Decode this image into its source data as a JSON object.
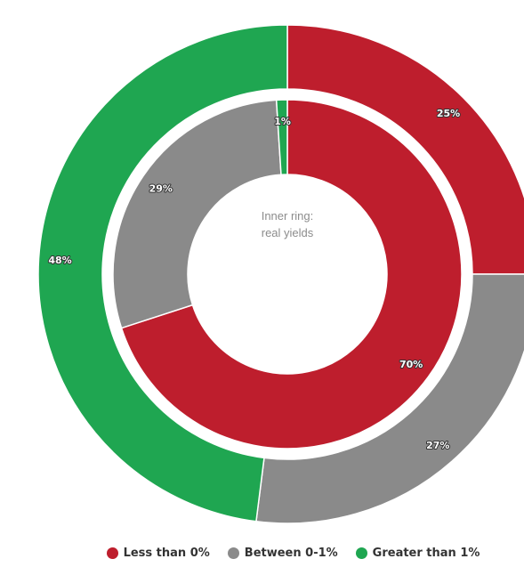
{
  "chart_data": {
    "type": "pie",
    "center_label": [
      "Inner ring:",
      "real yields"
    ],
    "categories": [
      "Less than 0%",
      "Between 0-1%",
      "Greater than 1%"
    ],
    "colors": [
      "#be1e2d",
      "#8a8a8a",
      "#1fa651"
    ],
    "rings": [
      {
        "ring": "outer",
        "values": [
          25,
          27,
          48
        ],
        "labels": [
          "25%",
          "27%",
          "48%"
        ]
      },
      {
        "ring": "inner",
        "values": [
          70,
          29,
          1
        ],
        "labels": [
          "70%",
          "29%",
          "1%"
        ]
      }
    ],
    "legend_position": "bottom-center"
  }
}
